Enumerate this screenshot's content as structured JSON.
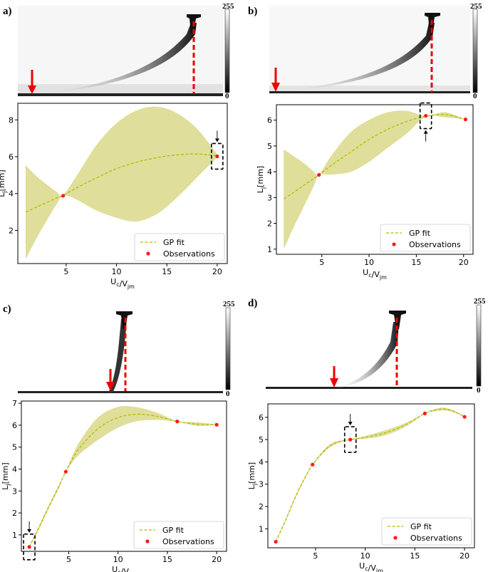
{
  "panels": [
    {
      "label": "a)",
      "cbar_max": "255",
      "cbar_min": "0"
    },
    {
      "label": "b)",
      "cbar_max": "255",
      "cbar_min": "0"
    },
    {
      "label": "c)",
      "cbar_max": "255",
      "cbar_min": "0"
    },
    {
      "label": "d)",
      "cbar_max": "255",
      "cbar_min": "0"
    }
  ],
  "colors": {
    "band": "#d9d98a",
    "fit": "#b8b800",
    "obs": "#ff1a1a",
    "marker": "#e60000"
  },
  "chart_data": [
    {
      "type": "line",
      "panel": "a)",
      "xlabel": "U_c/V_jm",
      "ylabel": "L_j[mm]",
      "xlim": [
        0.2,
        21
      ],
      "ylim": [
        0.2,
        8.9
      ],
      "xticks": [
        5,
        10,
        15,
        20
      ],
      "yticks": [
        2,
        4,
        6,
        8
      ],
      "legend": [
        "GP fit",
        "Observations"
      ],
      "legend_position": "lower-right",
      "series": [
        {
          "name": "GP fit",
          "x": [
            1,
            2,
            3,
            4,
            4.7,
            6,
            8,
            10,
            12,
            14,
            16,
            18,
            20
          ],
          "y": [
            3.0,
            3.25,
            3.5,
            3.75,
            3.9,
            4.3,
            4.85,
            5.35,
            5.7,
            5.95,
            6.1,
            6.15,
            6.05
          ]
        },
        {
          "name": "upper",
          "x": [
            1,
            2,
            3,
            4,
            4.7,
            6,
            8,
            10,
            12,
            14,
            16,
            18,
            20
          ],
          "y": [
            5.5,
            4.95,
            4.5,
            4.1,
            3.9,
            4.9,
            6.6,
            7.8,
            8.5,
            8.7,
            8.35,
            7.5,
            6.1
          ]
        },
        {
          "name": "lower",
          "x": [
            1,
            2,
            3,
            4,
            4.7,
            6,
            8,
            10,
            12,
            14,
            16,
            18,
            20
          ],
          "y": [
            0.5,
            1.55,
            2.5,
            3.4,
            3.9,
            3.7,
            3.1,
            2.7,
            2.5,
            2.9,
            3.8,
            4.9,
            6.0
          ]
        }
      ],
      "observations": {
        "x": [
          4.7,
          20
        ],
        "y": [
          3.88,
          6.02
        ]
      },
      "annotation": {
        "x": 20,
        "y": 6.02,
        "arrow": "from-above"
      }
    },
    {
      "type": "line",
      "panel": "b)",
      "xlabel": "U_c/V_jm",
      "ylabel": "L_j[mm]",
      "xlim": [
        0.2,
        21
      ],
      "ylim": [
        0.8,
        6.6
      ],
      "xticks": [
        5,
        10,
        15,
        20
      ],
      "yticks": [
        1,
        2,
        3,
        4,
        5,
        6
      ],
      "legend": [
        "GP fit",
        "Observations"
      ],
      "legend_position": "lower-right",
      "series": [
        {
          "name": "GP fit",
          "x": [
            1,
            2,
            3,
            4,
            4.7,
            6,
            8,
            10,
            12,
            14,
            16,
            18,
            20
          ],
          "y": [
            2.95,
            3.2,
            3.45,
            3.7,
            3.88,
            4.25,
            4.75,
            5.25,
            5.65,
            5.95,
            6.15,
            6.22,
            6.05
          ]
        },
        {
          "name": "upper",
          "x": [
            1,
            2,
            3,
            4,
            4.7,
            6,
            8,
            10,
            12,
            14,
            16,
            18,
            20
          ],
          "y": [
            4.85,
            4.6,
            4.35,
            4.05,
            3.88,
            4.6,
            5.5,
            6.0,
            6.3,
            6.35,
            6.15,
            6.3,
            6.05
          ]
        },
        {
          "name": "lower",
          "x": [
            1,
            2,
            3,
            4,
            4.7,
            6,
            8,
            10,
            12,
            14,
            16,
            18,
            20
          ],
          "y": [
            1.05,
            1.85,
            2.6,
            3.35,
            3.88,
            3.9,
            4.0,
            4.4,
            4.95,
            5.5,
            6.15,
            6.12,
            6.05
          ]
        }
      ],
      "observations": {
        "x": [
          4.7,
          16,
          20.2
        ],
        "y": [
          3.88,
          6.17,
          6.03
        ]
      },
      "annotation": {
        "x": 16,
        "y": 6.17,
        "arrow": "from-below"
      }
    },
    {
      "type": "line",
      "panel": "c)",
      "xlabel": "U_c/V_jm",
      "ylabel": "L_j[mm]",
      "xlim": [
        0.2,
        21
      ],
      "ylim": [
        0.25,
        7.1
      ],
      "xticks": [
        5,
        10,
        15,
        20
      ],
      "yticks": [
        1,
        2,
        3,
        4,
        5,
        6,
        7
      ],
      "legend": [
        "GP fit",
        "Observations"
      ],
      "legend_position": "lower-right",
      "series": [
        {
          "name": "GP fit",
          "x": [
            1,
            2,
            3,
            4,
            4.7,
            6,
            8,
            10,
            12,
            14,
            16,
            18,
            20
          ],
          "y": [
            0.45,
            1.35,
            2.3,
            3.2,
            3.88,
            4.9,
            5.85,
            6.35,
            6.5,
            6.4,
            6.17,
            6.05,
            6.02
          ]
        },
        {
          "name": "upper",
          "x": [
            1,
            2,
            3,
            4,
            4.7,
            6,
            8,
            10,
            12,
            14,
            16,
            18,
            20
          ],
          "y": [
            0.45,
            1.4,
            2.35,
            3.25,
            3.88,
            5.15,
            6.35,
            6.82,
            6.8,
            6.55,
            6.17,
            6.12,
            6.02
          ]
        },
        {
          "name": "lower",
          "x": [
            1,
            2,
            3,
            4,
            4.7,
            6,
            8,
            10,
            12,
            14,
            16,
            18,
            20
          ],
          "y": [
            0.45,
            1.3,
            2.25,
            3.15,
            3.88,
            4.65,
            5.35,
            5.9,
            6.2,
            6.25,
            6.17,
            5.98,
            6.02
          ]
        }
      ],
      "observations": {
        "x": [
          1,
          4.7,
          16,
          20
        ],
        "y": [
          0.45,
          3.88,
          6.17,
          6.02
        ]
      },
      "annotation": {
        "x": 1,
        "y": 0.45,
        "arrow": "from-above"
      }
    },
    {
      "type": "line",
      "panel": "d)",
      "xlabel": "U_c/V_jm",
      "ylabel": "L_j[mm]",
      "xlim": [
        0.2,
        21
      ],
      "ylim": [
        0.15,
        6.6
      ],
      "xticks": [
        5,
        10,
        15,
        20
      ],
      "yticks": [
        1,
        2,
        3,
        4,
        5,
        6
      ],
      "legend": [
        "GP fit",
        "Observations"
      ],
      "legend_position": "lower-right",
      "series": [
        {
          "name": "GP fit",
          "x": [
            1,
            2,
            3,
            4,
            4.7,
            6,
            7,
            8.5,
            10,
            12,
            14,
            16,
            17,
            18,
            19,
            20
          ],
          "y": [
            0.42,
            1.4,
            2.45,
            3.35,
            3.88,
            4.55,
            4.85,
            5.0,
            5.1,
            5.3,
            5.65,
            6.17,
            6.32,
            6.37,
            6.25,
            6.02
          ]
        },
        {
          "name": "upper",
          "x": [
            1,
            2,
            3,
            4,
            4.7,
            6,
            7,
            8.5,
            10,
            12,
            14,
            16,
            17,
            18,
            19,
            20
          ],
          "y": [
            0.42,
            1.42,
            2.48,
            3.38,
            3.88,
            4.6,
            4.9,
            5.0,
            5.15,
            5.4,
            5.72,
            6.17,
            6.36,
            6.42,
            6.28,
            6.02
          ]
        },
        {
          "name": "lower",
          "x": [
            1,
            2,
            3,
            4,
            4.7,
            6,
            7,
            8.5,
            10,
            12,
            14,
            16,
            17,
            18,
            19,
            20
          ],
          "y": [
            0.42,
            1.38,
            2.42,
            3.32,
            3.88,
            4.5,
            4.8,
            5.0,
            5.05,
            5.2,
            5.58,
            6.17,
            6.28,
            6.32,
            6.22,
            6.02
          ]
        }
      ],
      "observations": {
        "x": [
          1,
          4.7,
          8.5,
          16,
          20
        ],
        "y": [
          0.42,
          3.88,
          5.0,
          6.17,
          6.02
        ]
      },
      "annotation": {
        "x": 8.5,
        "y": 5.0,
        "arrow": "from-above"
      }
    }
  ]
}
